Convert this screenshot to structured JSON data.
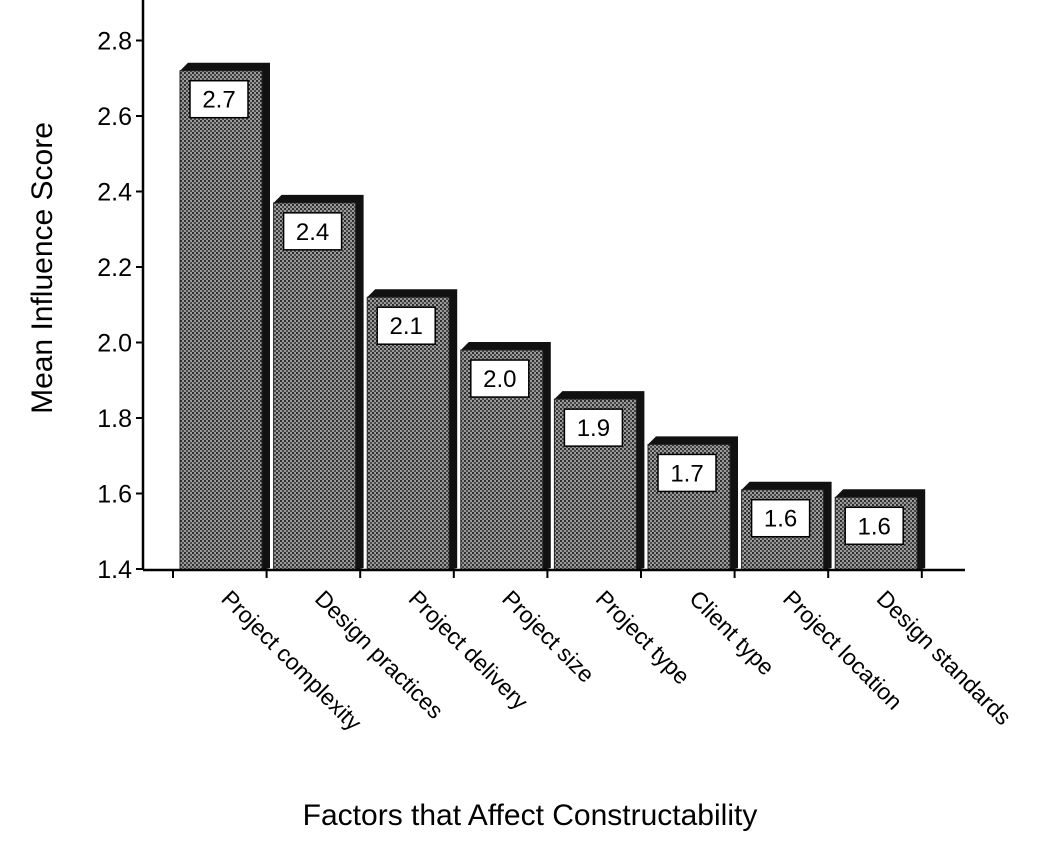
{
  "chart_data": {
    "type": "bar",
    "title": "",
    "xlabel": "Factors that Affect Constructability",
    "ylabel": "Mean Influence Score",
    "ylim": [
      1.4,
      2.9
    ],
    "yticks": [
      "1.4",
      "1.6",
      "1.8",
      "2.0",
      "2.2",
      "2.4",
      "2.6",
      "2.8"
    ],
    "categories": [
      "Project complexity",
      "Design practices",
      "Project delivery",
      "Project size",
      "Project type",
      "Client type",
      "Project location",
      "Design standards"
    ],
    "values": [
      2.72,
      2.37,
      2.12,
      1.98,
      1.85,
      1.73,
      1.61,
      1.59
    ],
    "value_labels": [
      "2.7",
      "2.4",
      "2.1",
      "2.0",
      "1.9",
      "1.7",
      "1.6",
      "1.6"
    ],
    "grid": false,
    "legend": "none",
    "bar_style": "3d-shaded dotted pattern",
    "colors": {
      "bar_fill": "#6b6b6b",
      "bar_shadow": "#111111",
      "axis": "#000000",
      "label_box": "#ffffff"
    }
  }
}
